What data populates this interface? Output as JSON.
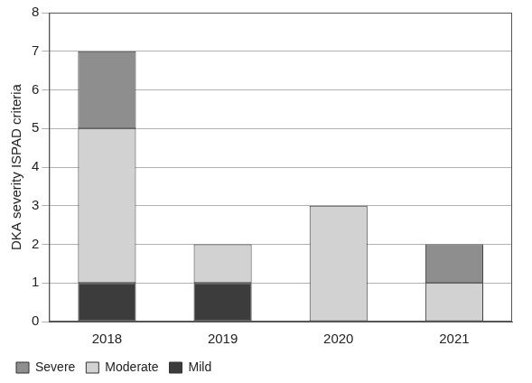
{
  "chart_data": {
    "type": "bar",
    "stacked": true,
    "y_label": "DKA severity ISPAD criteria",
    "categories": [
      "2018",
      "2019",
      "2020",
      "2021"
    ],
    "series": [
      {
        "name": "Mild",
        "color": "#3c3c3c",
        "values": [
          1,
          1,
          0,
          0
        ]
      },
      {
        "name": "Moderate",
        "color": "#d2d2d2",
        "values": [
          4,
          1,
          3,
          1
        ]
      },
      {
        "name": "Severe",
        "color": "#8e8e8e",
        "values": [
          2,
          0,
          0,
          1
        ]
      }
    ],
    "ylim": [
      0,
      8
    ],
    "yticks": [
      0,
      1,
      2,
      3,
      4,
      5,
      6,
      7,
      8
    ],
    "grid": true,
    "legend": "bottom-left"
  }
}
